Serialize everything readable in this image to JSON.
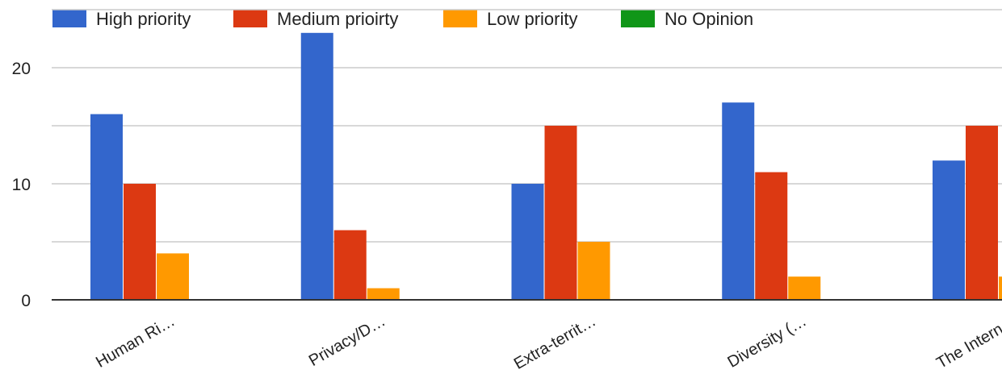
{
  "chart_data": {
    "type": "bar",
    "categories": [
      "Human Ri…",
      "Privacy/D…",
      "Extra-territ…",
      "Diversity (…",
      "The Intern…"
    ],
    "series": [
      {
        "name": "High priority",
        "color": "#3366cc",
        "values": [
          16,
          23,
          10,
          17,
          12
        ]
      },
      {
        "name": "Medium prioirty",
        "color": "#dc3912",
        "values": [
          10,
          6,
          15,
          11,
          15
        ]
      },
      {
        "name": "Low priority",
        "color": "#ff9900",
        "values": [
          4,
          1,
          5,
          2,
          2
        ]
      },
      {
        "name": "No Opinion",
        "color": "#109618",
        "values": [
          0,
          0,
          0,
          0,
          0
        ]
      }
    ],
    "yticks": [
      "0",
      "10",
      "20"
    ],
    "ylim": [
      0,
      25
    ],
    "grid": true,
    "legend_position": "top"
  }
}
